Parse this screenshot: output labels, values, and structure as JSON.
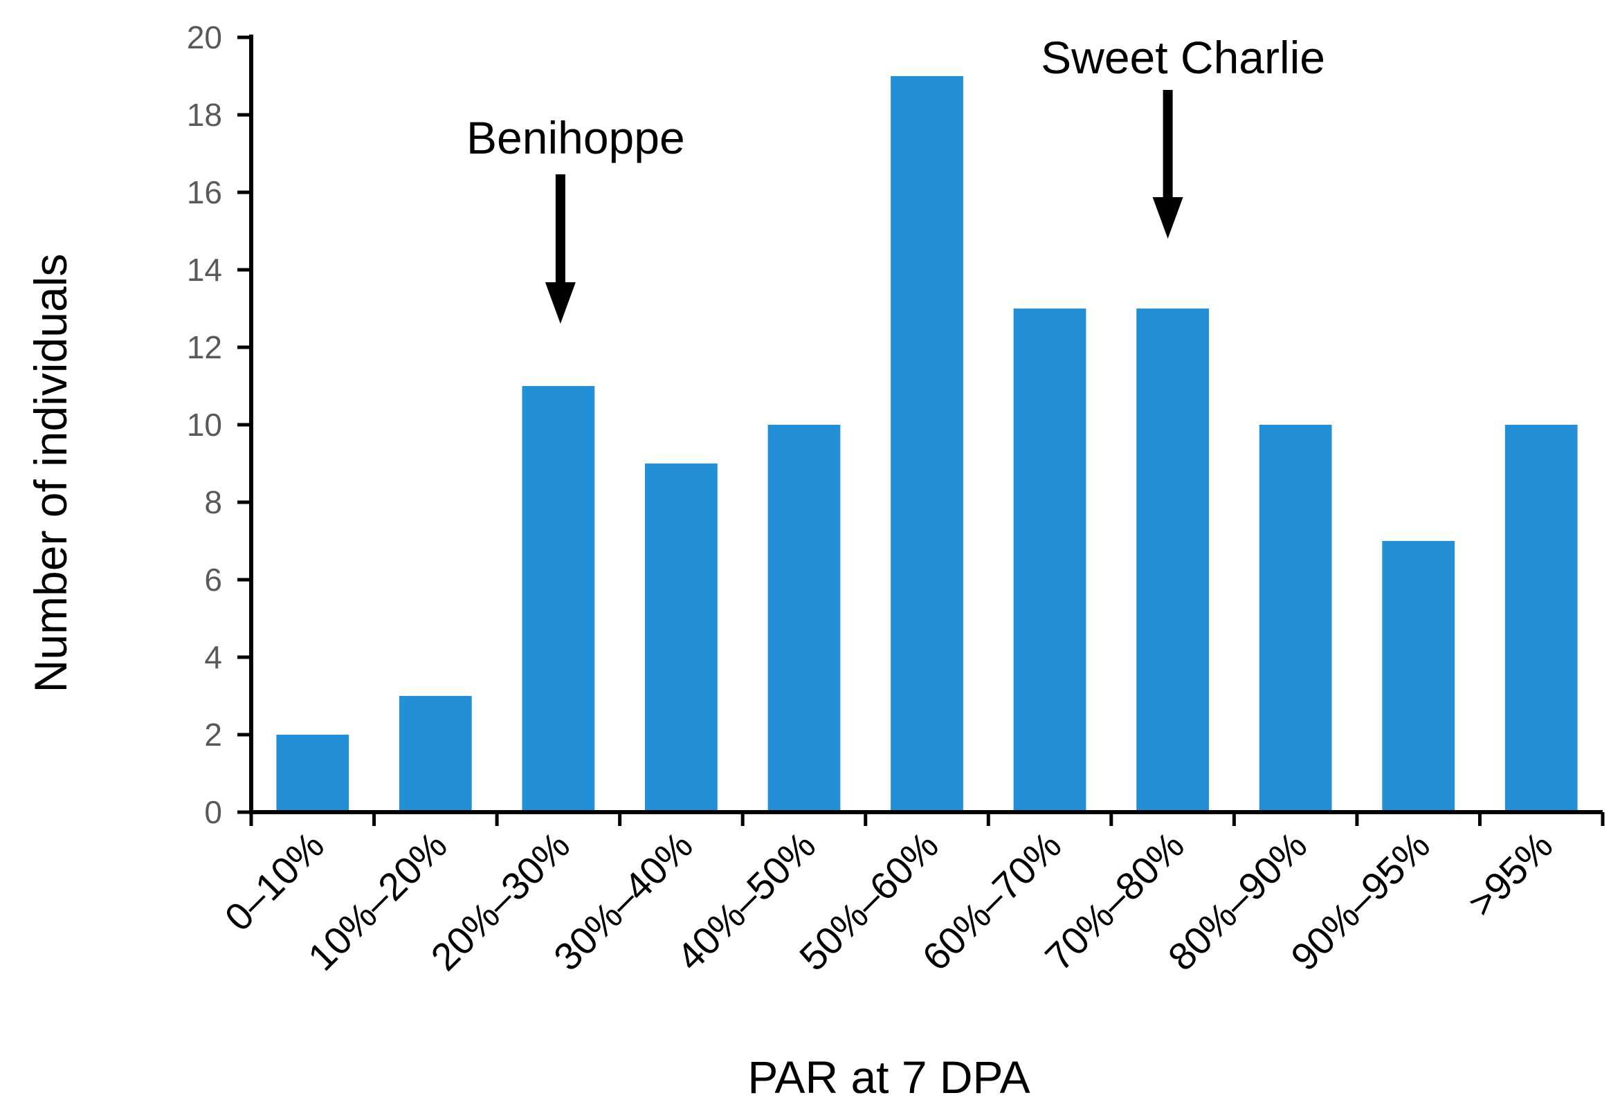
{
  "chart_data": {
    "type": "bar",
    "categories": [
      "0–10%",
      "10%–20%",
      "20%–30%",
      "30%–40%",
      "40%–50%",
      "50%–60%",
      "60%–70%",
      "70%–80%",
      "80%–90%",
      "90%–95%",
      ">95%"
    ],
    "values": [
      2,
      3,
      11,
      9,
      10,
      19,
      13,
      13,
      10,
      7,
      10
    ],
    "xlabel": "PAR at 7 DPA",
    "ylabel": "Number of individuals",
    "ylim": [
      0,
      20
    ],
    "yticks": [
      0,
      2,
      4,
      6,
      8,
      10,
      12,
      14,
      16,
      18,
      20
    ],
    "grid": false,
    "bar_color": "#228FD6",
    "annotations": [
      {
        "text": "Benihoppe",
        "category": "20%–30%"
      },
      {
        "text": "Sweet Charlie",
        "category": "70%–80%"
      }
    ]
  }
}
